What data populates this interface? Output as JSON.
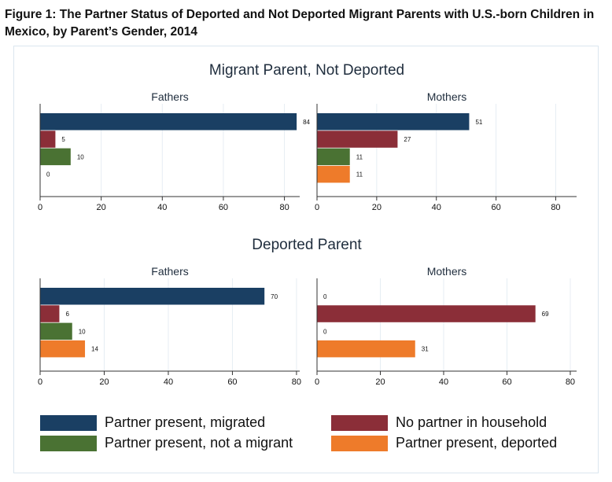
{
  "figure": {
    "title": "Figure 1: The Partner Status of Deported and Not Deported Migrant Parents with U.S.-born Children in Mexico, by Parent’s Gender, 2014"
  },
  "colors": {
    "partner_present_migrated": "#1a3f63",
    "no_partner_in_household": "#8b2e38",
    "partner_present_not_migrant": "#4a7233",
    "partner_present_deported": "#ee7b2a",
    "axis": "#333333",
    "grid": "#e6edf3"
  },
  "legend": {
    "items": [
      {
        "label": "Partner present, migrated",
        "color": "#1a3f63"
      },
      {
        "label": "No partner in household",
        "color": "#8b2e38"
      },
      {
        "label": "Partner present, not a migrant",
        "color": "#4a7233"
      },
      {
        "label": "Partner present, deported",
        "color": "#ee7b2a"
      }
    ]
  },
  "chart_data": [
    {
      "type": "bar",
      "group": "Migrant Parent, Not Deported",
      "title": "Fathers",
      "orientation": "horizontal",
      "categories": [
        "Partner present, migrated",
        "No partner in household",
        "Partner present, not a migrant",
        "Partner present, deported"
      ],
      "values": [
        84,
        5,
        10,
        0
      ],
      "data_labels": [
        "84",
        "5",
        "10",
        "0"
      ],
      "xlim": [
        0,
        85
      ],
      "xticks": [
        0,
        20,
        40,
        60,
        80
      ],
      "grid": true
    },
    {
      "type": "bar",
      "group": "Migrant Parent, Not Deported",
      "title": "Mothers",
      "orientation": "horizontal",
      "categories": [
        "Partner present, migrated",
        "No partner in household",
        "Partner present, not a migrant",
        "Partner present, deported"
      ],
      "values": [
        51,
        27,
        11,
        11
      ],
      "data_labels": [
        "51",
        "27",
        "11",
        "11"
      ],
      "xlim": [
        0,
        87
      ],
      "xticks": [
        0,
        20,
        40,
        60,
        80
      ],
      "grid": true
    },
    {
      "type": "bar",
      "group": "Deported Parent",
      "title": "Fathers",
      "orientation": "horizontal",
      "categories": [
        "Partner present, migrated",
        "No partner in household",
        "Partner present, not a migrant",
        "Partner present, deported"
      ],
      "values": [
        70,
        6,
        10,
        14
      ],
      "data_labels": [
        "70",
        "6",
        "10",
        "14"
      ],
      "xlim": [
        0,
        81
      ],
      "xticks": [
        0,
        20,
        40,
        60,
        80
      ],
      "grid": true
    },
    {
      "type": "bar",
      "group": "Deported Parent",
      "title": "Mothers",
      "orientation": "horizontal",
      "categories": [
        "Partner present, migrated",
        "No partner in household",
        "Partner present, not a migrant",
        "Partner present, deported"
      ],
      "values": [
        0,
        69,
        0,
        31
      ],
      "data_labels": [
        "0",
        "69",
        "0",
        "31"
      ],
      "xlim": [
        0,
        82
      ],
      "xticks": [
        0,
        20,
        40,
        60,
        80
      ],
      "grid": true
    }
  ],
  "groups": {
    "top": "Migrant Parent, Not Deported",
    "bottom": "Deported Parent"
  }
}
